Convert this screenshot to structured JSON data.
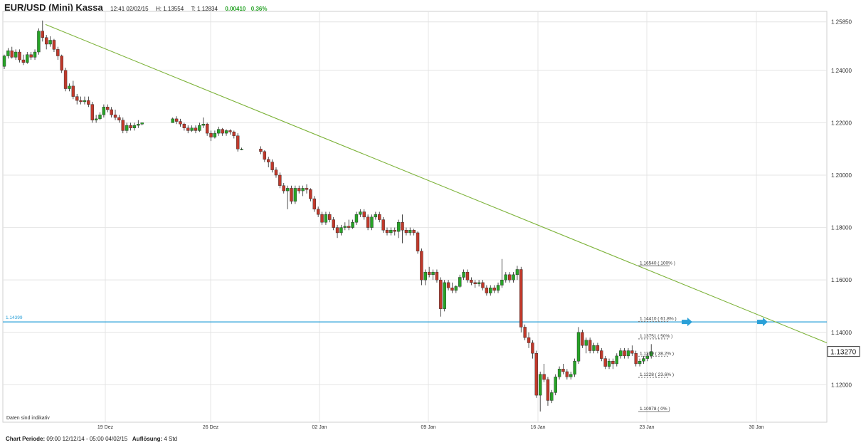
{
  "header": {
    "title": "EUR/USD (Mini) Kassa",
    "time": "12:41 02/02/15",
    "high": "H: 1.13554",
    "low": "T: 1.12834",
    "change": "0.00410",
    "change_pct": "0.36%"
  },
  "footer": {
    "period_label": "Chart Periode:",
    "period_value": "09:00 12/12/14 - 05:00 04/02/15",
    "res_label": "Auflösung:",
    "res_value": "4 Std"
  },
  "disclaimer": "Daten sind indikativ",
  "colors": {
    "up": "#27a327",
    "down": "#c0392b",
    "trend": "#7db33a",
    "hline": "#2aa0d8",
    "grid": "#e4e4e4"
  },
  "chart_data": {
    "type": "candlestick",
    "ylim": [
      1.1057,
      1.2625
    ],
    "y_ticks": [
      "1.25850",
      "1.24000",
      "1.22000",
      "1.20000",
      "1.18000",
      "1.16000",
      "1.14000",
      "1.12000"
    ],
    "y_tick_values": [
      1.2585,
      1.24,
      1.22,
      1.2,
      1.18,
      1.16,
      1.14,
      1.12
    ],
    "x_ticks": [
      "19 Dez",
      "26 Dez",
      "02 Jan",
      "09 Jan",
      "16 Jan",
      "23 Jan",
      "30 Jan"
    ],
    "current_price": "1.13270",
    "current_value": 1.1327,
    "horizontal_line": {
      "label": "1.14399",
      "value": 1.14399
    },
    "trendline": [
      {
        "x": "15 Dez",
        "y": 1.2575
      },
      {
        "x": "03 Feb",
        "y": 1.136
      }
    ],
    "fibonacci": [
      {
        "label": "1.16540 ( 100% )",
        "value": 1.1654
      },
      {
        "label": "1.14410 ( 61.8% )",
        "value": 1.1441
      },
      {
        "label": "1.13751 ( 50% )",
        "value": 1.13751
      },
      {
        "label": "1.1309 ( 38.2% )",
        "value": 1.1309
      },
      {
        "label": "1.1228 ( 23.6% )",
        "value": 1.1228
      },
      {
        "label": "1.10978 ( 0% )",
        "value": 1.10978
      }
    ],
    "candles": [
      [
        1.2415,
        1.246,
        1.2405,
        1.2455
      ],
      [
        1.2455,
        1.2485,
        1.2445,
        1.2475
      ],
      [
        1.2475,
        1.249,
        1.2445,
        1.245
      ],
      [
        1.245,
        1.248,
        1.244,
        1.247
      ],
      [
        1.247,
        1.248,
        1.243,
        1.244
      ],
      [
        1.244,
        1.246,
        1.242,
        1.243
      ],
      [
        1.243,
        1.247,
        1.2425,
        1.246
      ],
      [
        1.246,
        1.247,
        1.244,
        1.245
      ],
      [
        1.245,
        1.248,
        1.244,
        1.247
      ],
      [
        1.247,
        1.256,
        1.246,
        1.255
      ],
      [
        1.255,
        1.259,
        1.251,
        1.2525
      ],
      [
        1.2525,
        1.2535,
        1.248,
        1.25
      ],
      [
        1.25,
        1.253,
        1.249,
        1.2515
      ],
      [
        1.2515,
        1.252,
        1.247,
        1.248
      ],
      [
        1.248,
        1.249,
        1.244,
        1.2455
      ],
      [
        1.2455,
        1.246,
        1.239,
        1.24
      ],
      [
        1.24,
        1.241,
        1.232,
        1.233
      ],
      [
        1.233,
        1.235,
        1.232,
        1.234
      ],
      [
        1.234,
        1.236,
        1.229,
        1.23
      ],
      [
        1.23,
        1.231,
        1.227,
        1.2285
      ],
      [
        1.2285,
        1.23,
        1.227,
        1.228
      ],
      [
        1.228,
        1.23,
        1.227,
        1.2285
      ],
      [
        1.2285,
        1.23,
        1.226,
        1.227
      ],
      [
        1.227,
        1.228,
        1.22,
        1.221
      ],
      [
        1.221,
        1.223,
        1.22,
        1.2215
      ],
      [
        1.2215,
        1.224,
        1.221,
        1.223
      ],
      [
        1.223,
        1.227,
        1.222,
        1.226
      ],
      [
        1.226,
        1.227,
        1.224,
        1.225
      ],
      [
        1.225,
        1.226,
        1.222,
        1.223
      ],
      [
        1.223,
        1.225,
        1.221,
        1.222
      ],
      [
        1.222,
        1.223,
        1.22,
        1.221
      ],
      [
        1.221,
        1.222,
        1.216,
        1.217
      ],
      [
        1.217,
        1.22,
        1.216,
        1.219
      ],
      [
        1.219,
        1.22,
        1.217,
        1.218
      ],
      [
        1.218,
        1.22,
        1.217,
        1.219
      ],
      [
        1.219,
        1.221,
        1.218,
        1.2195
      ],
      [
        1.2195,
        1.22,
        1.219,
        1.22
      ],
      null,
      null,
      null,
      null,
      null,
      null,
      null,
      [
        1.22,
        1.222,
        1.22,
        1.2215
      ],
      [
        1.2215,
        1.2225,
        1.2195,
        1.2205
      ],
      [
        1.2205,
        1.2215,
        1.2185,
        1.2195
      ],
      [
        1.2195,
        1.22,
        1.217,
        1.218
      ],
      [
        1.218,
        1.219,
        1.216,
        1.217
      ],
      [
        1.217,
        1.219,
        1.2165,
        1.218
      ],
      [
        1.218,
        1.219,
        1.216,
        1.217
      ],
      [
        1.217,
        1.22,
        1.2165,
        1.219
      ],
      [
        1.219,
        1.222,
        1.218,
        1.2195
      ],
      [
        1.2195,
        1.22,
        1.215,
        1.216
      ],
      [
        1.216,
        1.217,
        1.213,
        1.2145
      ],
      [
        1.2145,
        1.217,
        1.214,
        1.216
      ],
      [
        1.216,
        1.2185,
        1.215,
        1.2175
      ],
      [
        1.2175,
        1.218,
        1.215,
        1.216
      ],
      [
        1.216,
        1.2175,
        1.215,
        1.217
      ],
      [
        1.217,
        1.2175,
        1.2155,
        1.2165
      ],
      [
        1.2165,
        1.217,
        1.214,
        1.215
      ],
      [
        1.215,
        1.216,
        1.209,
        1.21
      ],
      [
        1.21,
        1.2105,
        1.2095,
        1.21
      ],
      null,
      null,
      null,
      null,
      [
        1.21,
        1.211,
        1.208,
        1.209
      ],
      [
        1.209,
        1.2095,
        1.205,
        1.206
      ],
      [
        1.206,
        1.207,
        1.203,
        1.205
      ],
      [
        1.205,
        1.206,
        1.201,
        1.202
      ],
      [
        1.202,
        1.203,
        1.199,
        1.2
      ],
      [
        1.2,
        1.201,
        1.195,
        1.196
      ],
      [
        1.196,
        1.197,
        1.193,
        1.194
      ],
      [
        1.194,
        1.196,
        1.187,
        1.195
      ],
      [
        1.195,
        1.196,
        1.189,
        1.19
      ],
      [
        1.19,
        1.196,
        1.189,
        1.195
      ],
      [
        1.195,
        1.196,
        1.193,
        1.194
      ],
      [
        1.194,
        1.196,
        1.192,
        1.195
      ],
      [
        1.195,
        1.1965,
        1.193,
        1.1945
      ],
      [
        1.1945,
        1.195,
        1.19,
        1.191
      ],
      [
        1.191,
        1.192,
        1.186,
        1.187
      ],
      [
        1.187,
        1.188,
        1.184,
        1.185
      ],
      [
        1.185,
        1.186,
        1.181,
        1.182
      ],
      [
        1.182,
        1.186,
        1.181,
        1.185
      ],
      [
        1.185,
        1.186,
        1.182,
        1.183
      ],
      [
        1.183,
        1.184,
        1.179,
        1.18
      ],
      [
        1.18,
        1.181,
        1.176,
        1.178
      ],
      [
        1.178,
        1.181,
        1.177,
        1.18
      ],
      [
        1.18,
        1.182,
        1.179,
        1.1805
      ],
      [
        1.1805,
        1.183,
        1.179,
        1.18
      ],
      [
        1.18,
        1.183,
        1.1795,
        1.182
      ],
      [
        1.182,
        1.186,
        1.181,
        1.185
      ],
      [
        1.185,
        1.187,
        1.184,
        1.186
      ],
      [
        1.186,
        1.187,
        1.183,
        1.184
      ],
      [
        1.184,
        1.185,
        1.179,
        1.18
      ],
      [
        1.18,
        1.185,
        1.179,
        1.184
      ],
      [
        1.184,
        1.186,
        1.183,
        1.185
      ],
      [
        1.185,
        1.186,
        1.182,
        1.183
      ],
      [
        1.183,
        1.184,
        1.178,
        1.179
      ],
      [
        1.179,
        1.18,
        1.177,
        1.178
      ],
      [
        1.178,
        1.18,
        1.177,
        1.179
      ],
      [
        1.179,
        1.18,
        1.177,
        1.1785
      ],
      [
        1.1785,
        1.183,
        1.176,
        1.182
      ],
      [
        1.182,
        1.185,
        1.174,
        1.179
      ],
      [
        1.179,
        1.18,
        1.177,
        1.178
      ],
      [
        1.178,
        1.18,
        1.177,
        1.179
      ],
      [
        1.179,
        1.1795,
        1.177,
        1.178
      ],
      [
        1.178,
        1.1785,
        1.17,
        1.171
      ],
      [
        1.171,
        1.172,
        1.158,
        1.16
      ],
      [
        1.16,
        1.164,
        1.158,
        1.163
      ],
      [
        1.163,
        1.165,
        1.161,
        1.162
      ],
      [
        1.162,
        1.164,
        1.16,
        1.163
      ],
      [
        1.163,
        1.164,
        1.159,
        1.16
      ],
      [
        1.16,
        1.161,
        1.146,
        1.149
      ],
      [
        1.149,
        1.16,
        1.148,
        1.159
      ],
      [
        1.159,
        1.16,
        1.156,
        1.157
      ],
      [
        1.157,
        1.159,
        1.155,
        1.156
      ],
      [
        1.156,
        1.158,
        1.155,
        1.1575
      ],
      [
        1.1575,
        1.162,
        1.157,
        1.161
      ],
      [
        1.161,
        1.164,
        1.16,
        1.163
      ],
      [
        1.163,
        1.164,
        1.159,
        1.16
      ],
      [
        1.16,
        1.161,
        1.158,
        1.159
      ],
      [
        1.159,
        1.16,
        1.157,
        1.1585
      ],
      [
        1.1585,
        1.16,
        1.1575,
        1.159
      ],
      [
        1.159,
        1.16,
        1.156,
        1.157
      ],
      [
        1.157,
        1.158,
        1.154,
        1.155
      ],
      [
        1.155,
        1.158,
        1.154,
        1.157
      ],
      [
        1.157,
        1.158,
        1.155,
        1.156
      ],
      [
        1.156,
        1.159,
        1.155,
        1.158
      ],
      [
        1.158,
        1.168,
        1.157,
        1.16
      ],
      [
        1.16,
        1.163,
        1.159,
        1.162
      ],
      [
        1.162,
        1.163,
        1.159,
        1.16
      ],
      [
        1.16,
        1.163,
        1.159,
        1.162
      ],
      [
        1.162,
        1.1654,
        1.16,
        1.164
      ],
      [
        1.164,
        1.165,
        1.14,
        1.142
      ],
      [
        1.142,
        1.143,
        1.137,
        1.138
      ],
      [
        1.138,
        1.14,
        1.134,
        1.136
      ],
      [
        1.136,
        1.137,
        1.13,
        1.132
      ],
      [
        1.132,
        1.133,
        1.115,
        1.116
      ],
      [
        1.116,
        1.125,
        1.1098,
        1.124
      ],
      [
        1.124,
        1.128,
        1.121,
        1.122
      ],
      [
        1.122,
        1.123,
        1.112,
        1.114
      ],
      [
        1.114,
        1.118,
        1.113,
        1.117
      ],
      [
        1.117,
        1.124,
        1.116,
        1.123
      ],
      [
        1.123,
        1.127,
        1.122,
        1.126
      ],
      [
        1.126,
        1.128,
        1.124,
        1.125
      ],
      [
        1.125,
        1.126,
        1.122,
        1.123
      ],
      [
        1.123,
        1.125,
        1.122,
        1.124
      ],
      [
        1.124,
        1.13,
        1.123,
        1.129
      ],
      [
        1.129,
        1.142,
        1.128,
        1.14
      ],
      [
        1.14,
        1.141,
        1.134,
        1.135
      ],
      [
        1.135,
        1.138,
        1.132,
        1.137
      ],
      [
        1.137,
        1.138,
        1.132,
        1.133
      ],
      [
        1.133,
        1.136,
        1.132,
        1.135
      ],
      [
        1.135,
        1.136,
        1.132,
        1.133
      ],
      [
        1.133,
        1.134,
        1.129,
        1.13
      ],
      [
        1.13,
        1.131,
        1.126,
        1.127
      ],
      [
        1.127,
        1.13,
        1.126,
        1.129
      ],
      [
        1.129,
        1.13,
        1.126,
        1.128
      ],
      [
        1.128,
        1.132,
        1.127,
        1.131
      ],
      [
        1.131,
        1.134,
        1.13,
        1.133
      ],
      [
        1.133,
        1.134,
        1.13,
        1.131
      ],
      [
        1.131,
        1.134,
        1.13,
        1.133
      ],
      [
        1.133,
        1.135,
        1.131,
        1.132
      ],
      [
        1.132,
        1.133,
        1.127,
        1.128
      ],
      [
        1.128,
        1.13,
        1.127,
        1.129
      ],
      [
        1.129,
        1.131,
        1.128,
        1.13
      ],
      [
        1.13,
        1.132,
        1.129,
        1.131
      ],
      [
        1.131,
        1.1355,
        1.13,
        1.1327
      ]
    ]
  }
}
